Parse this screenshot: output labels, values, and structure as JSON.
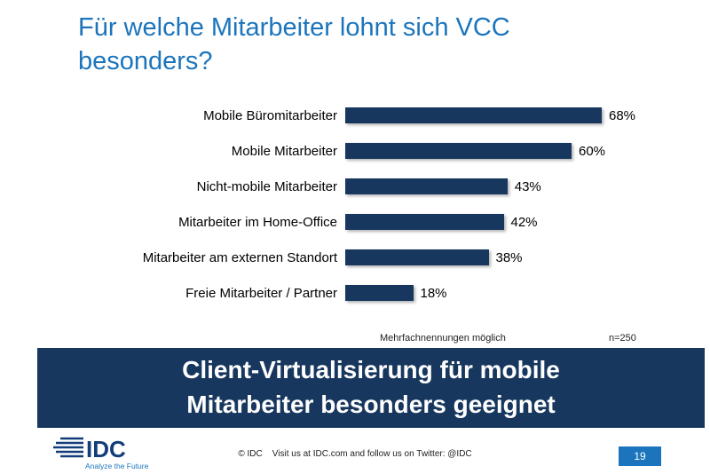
{
  "slide": {
    "title": "Für welche Mitarbeiter lohnt sich VCC besonders?",
    "footnote": "Mehrfachnennungen möglich",
    "sample_size": "n=250",
    "banner": {
      "line1": "Client-Virtualisierung für mobile",
      "line2": "Mitarbeiter besonders geeignet"
    },
    "footer": {
      "copyright_text": "© IDC    Visit us at IDC.com and follow us on Twitter: @IDC",
      "page_number": "19",
      "logo_text": "IDC",
      "logo_tagline": "Analyze the Future"
    }
  },
  "colors": {
    "title_blue": "#1C75BC",
    "bar_navy": "#17375E",
    "banner_bg": "#17375E",
    "banner_text": "#FFFFFF",
    "page_box_bg": "#1C75BC"
  },
  "chart_data": {
    "type": "bar",
    "orientation": "horizontal",
    "title": "Für welche Mitarbeiter lohnt sich VCC besonders?",
    "categories": [
      "Mobile Büromitarbeiter",
      "Mobile Mitarbeiter",
      "Nicht-mobile Mitarbeiter",
      "Mitarbeiter im Home-Office",
      "Mitarbeiter am externen Standort",
      "Freie Mitarbeiter / Partner"
    ],
    "values": [
      68,
      60,
      43,
      42,
      38,
      18
    ],
    "value_labels": [
      "68%",
      "60%",
      "43%",
      "42%",
      "38%",
      "18%"
    ],
    "xlim": [
      0,
      100
    ],
    "grid": false,
    "legend": false,
    "annotations": [
      "Mehrfachnennungen möglich",
      "n=250"
    ]
  }
}
